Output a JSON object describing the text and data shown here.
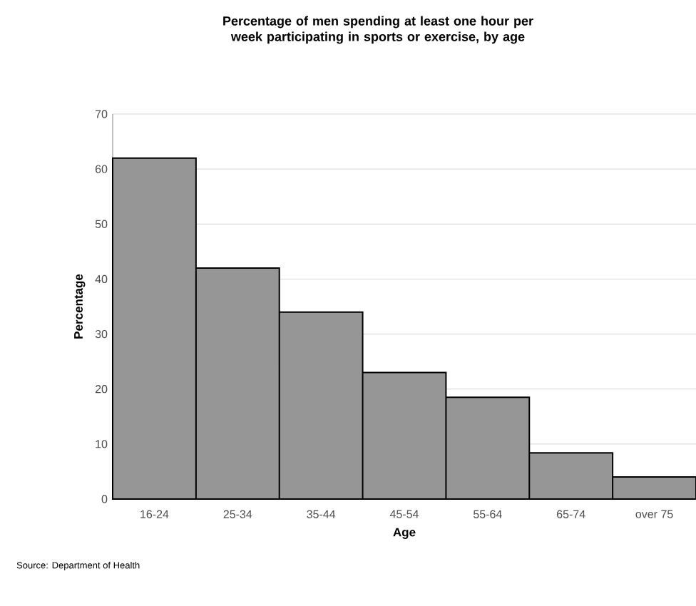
{
  "chart_data": {
    "type": "bar",
    "title": "Percentage of men spending at least one hour per week participating in sports or exercise, by age",
    "xlabel": "Age",
    "ylabel": "Percentage",
    "categories": [
      "16-24",
      "25-34",
      "35-44",
      "45-54",
      "55-64",
      "65-74",
      "over 75"
    ],
    "values": [
      62,
      42,
      34,
      23,
      18.5,
      8.4,
      4
    ],
    "color": "#969696",
    "ylim": [
      0,
      70
    ],
    "yticks": [
      0,
      10,
      20,
      30,
      40,
      50,
      60,
      70
    ],
    "grid": "y",
    "annotations": [
      "Source: Department of Health"
    ]
  }
}
